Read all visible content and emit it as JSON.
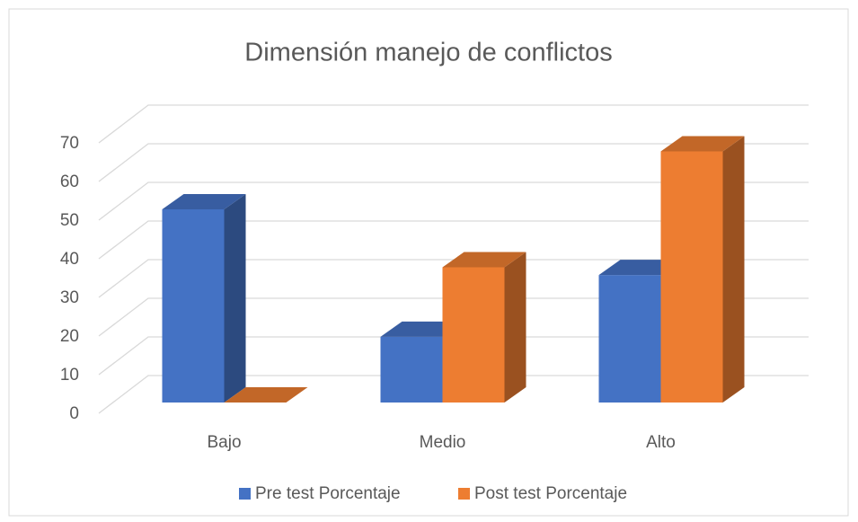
{
  "chart_data": {
    "type": "bar3d",
    "title": "Dimensión manejo de conflictos",
    "categories": [
      "Bajo",
      "Medio",
      "Alto"
    ],
    "series": [
      {
        "name": "Pre test Porcentaje",
        "color": "#4472c4",
        "values": [
          50,
          17,
          33
        ]
      },
      {
        "name": "Post test Porcentaje",
        "color": "#ed7d31",
        "values": [
          0,
          35,
          65
        ]
      }
    ],
    "ylim": [
      0,
      70
    ],
    "yticks": [
      0,
      10,
      20,
      30,
      40,
      50,
      60,
      70
    ],
    "grid": true,
    "legend": "bottom"
  }
}
